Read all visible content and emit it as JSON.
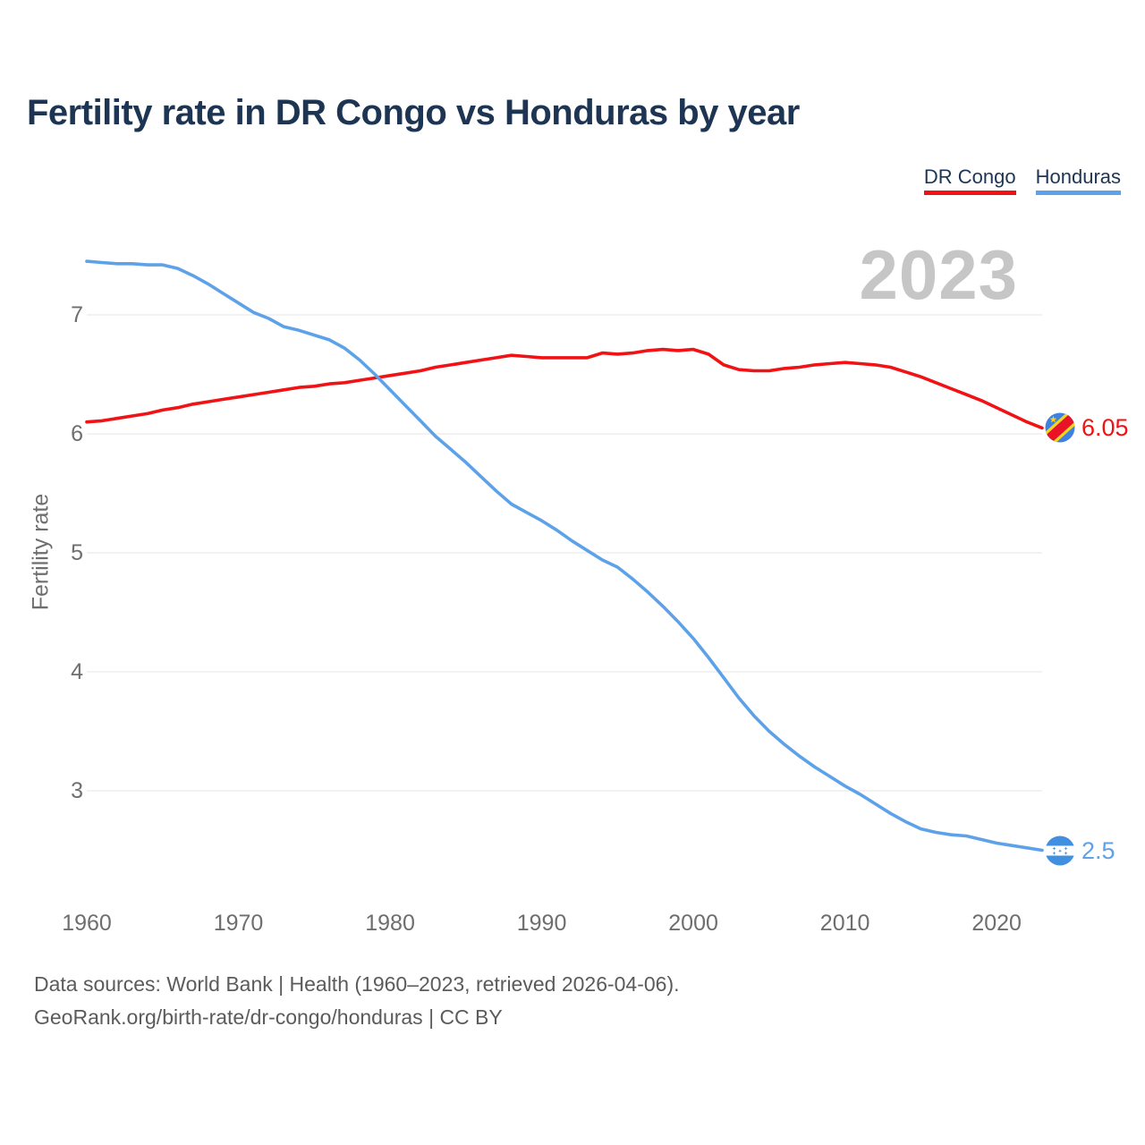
{
  "header": {
    "title": "Fertility rate in DR Congo vs Honduras by year"
  },
  "chart": {
    "big_year_label": "2023",
    "ylabel": "Fertility rate"
  },
  "chart_data": {
    "type": "line",
    "title": "Fertility rate in DR Congo vs Honduras by year",
    "xlabel": "",
    "ylabel": "Fertility rate",
    "x": [
      1960,
      1961,
      1962,
      1963,
      1964,
      1965,
      1966,
      1967,
      1968,
      1969,
      1970,
      1971,
      1972,
      1973,
      1974,
      1975,
      1976,
      1977,
      1978,
      1979,
      1980,
      1981,
      1982,
      1983,
      1984,
      1985,
      1986,
      1987,
      1988,
      1989,
      1990,
      1991,
      1992,
      1993,
      1994,
      1995,
      1996,
      1997,
      1998,
      1999,
      2000,
      2001,
      2002,
      2003,
      2004,
      2005,
      2006,
      2007,
      2008,
      2009,
      2010,
      2011,
      2012,
      2013,
      2014,
      2015,
      2016,
      2017,
      2018,
      2019,
      2020,
      2021,
      2022,
      2023
    ],
    "x_ticks": [
      1960,
      1970,
      1980,
      1990,
      2000,
      2010,
      2020
    ],
    "y_ticks": [
      7,
      6,
      5,
      4,
      3
    ],
    "ylim": [
      2.3,
      7.6
    ],
    "grid": "horizontal",
    "legend_position": "top-right",
    "series": [
      {
        "name": "DR Congo",
        "color": "#f01214",
        "flag_icon": "dr-congo-flag-icon",
        "end_label": "6.05",
        "values": [
          6.1,
          6.11,
          6.13,
          6.15,
          6.17,
          6.2,
          6.22,
          6.25,
          6.27,
          6.29,
          6.31,
          6.33,
          6.35,
          6.37,
          6.39,
          6.4,
          6.42,
          6.43,
          6.45,
          6.47,
          6.49,
          6.51,
          6.53,
          6.56,
          6.58,
          6.6,
          6.62,
          6.64,
          6.66,
          6.65,
          6.64,
          6.64,
          6.64,
          6.64,
          6.68,
          6.67,
          6.68,
          6.7,
          6.71,
          6.7,
          6.71,
          6.67,
          6.58,
          6.54,
          6.53,
          6.53,
          6.55,
          6.56,
          6.58,
          6.59,
          6.6,
          6.59,
          6.58,
          6.56,
          6.52,
          6.48,
          6.43,
          6.38,
          6.33,
          6.28,
          6.22,
          6.16,
          6.1,
          6.05
        ]
      },
      {
        "name": "Honduras",
        "color": "#5da2e8",
        "flag_icon": "honduras-flag-icon",
        "end_label": "2.5",
        "values": [
          7.45,
          7.44,
          7.43,
          7.43,
          7.42,
          7.42,
          7.39,
          7.33,
          7.26,
          7.18,
          7.1,
          7.02,
          6.97,
          6.9,
          6.87,
          6.83,
          6.79,
          6.72,
          6.62,
          6.5,
          6.37,
          6.24,
          6.11,
          5.98,
          5.87,
          5.76,
          5.64,
          5.52,
          5.41,
          5.34,
          5.27,
          5.19,
          5.1,
          5.02,
          4.94,
          4.88,
          4.78,
          4.67,
          4.55,
          4.42,
          4.28,
          4.12,
          3.95,
          3.78,
          3.63,
          3.5,
          3.39,
          3.29,
          3.2,
          3.12,
          3.04,
          2.97,
          2.89,
          2.81,
          2.74,
          2.68,
          2.65,
          2.63,
          2.62,
          2.59,
          2.56,
          2.54,
          2.52,
          2.5
        ]
      }
    ]
  },
  "footer": {
    "line1": "Data sources: World Bank | Health (1960–2023, retrieved 2026-04-06).",
    "line2": "GeoRank.org/birth-rate/dr-congo/honduras | CC BY"
  }
}
